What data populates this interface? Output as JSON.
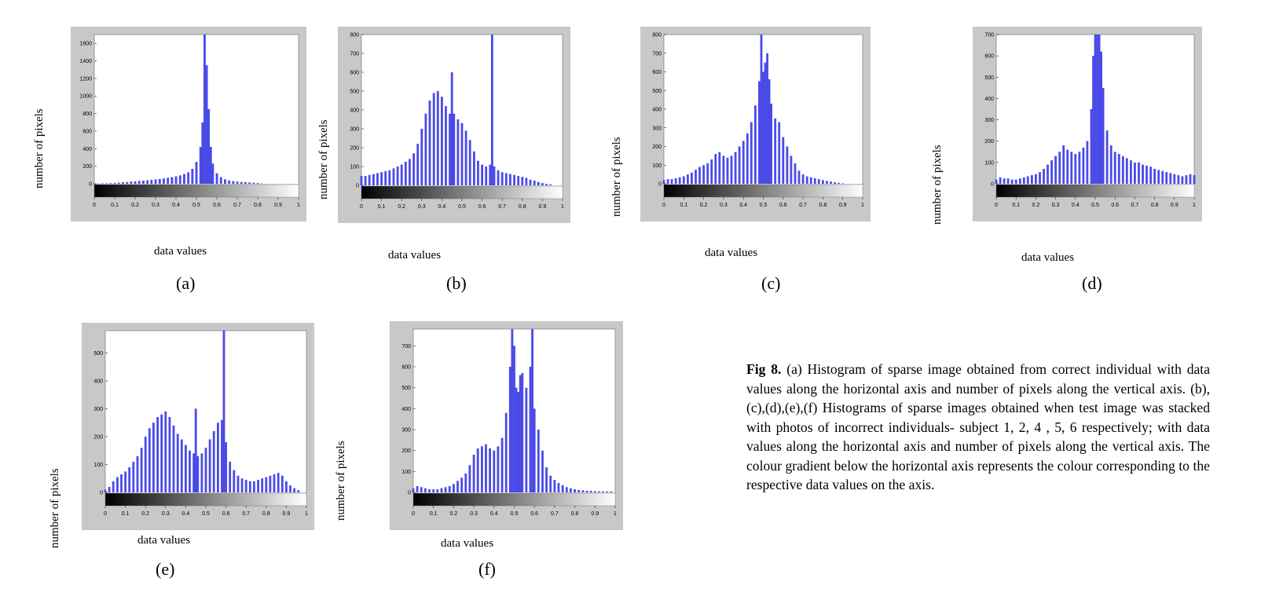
{
  "figure": {
    "caption_label": "Fig 8.",
    "caption_text": "(a) Histogram of sparse image obtained from correct individual with data values along the horizontal axis and number of pixels along the vertical axis. (b),(c),(d),(e),(f) Histograms of sparse images obtained when test image was stacked with photos of incorrect individuals- subject 1, 2, 4 , 5, 6 respectively; with data values along the horizontal axis and number of pixels along the vertical axis. The colour gradient below the horizontal axis represents the colour corresponding to the respective data values on the axis."
  },
  "colors": {
    "bar": "#4a4ae8",
    "frame": "#c8c8c8",
    "plot_bg": "#ffffff"
  },
  "chart_data": [
    {
      "type": "bar",
      "label": "(a)",
      "xlabel": "data values",
      "ylabel": "number of pixels",
      "xlim": [
        0,
        1
      ],
      "ylim": [
        0,
        1700
      ],
      "xticks": [
        "0",
        "0.1",
        "0.2",
        "0.3",
        "0.4",
        "0.5",
        "0.6",
        "0.7",
        "0.8",
        "0.9",
        "1"
      ],
      "yticks": [
        0,
        200,
        400,
        600,
        800,
        1000,
        1200,
        1400,
        1600
      ],
      "x": [
        0.0,
        0.02,
        0.04,
        0.06,
        0.08,
        0.1,
        0.12,
        0.14,
        0.16,
        0.18,
        0.2,
        0.22,
        0.24,
        0.26,
        0.28,
        0.3,
        0.32,
        0.34,
        0.36,
        0.38,
        0.4,
        0.42,
        0.44,
        0.46,
        0.48,
        0.5,
        0.52,
        0.53,
        0.54,
        0.55,
        0.56,
        0.57,
        0.58,
        0.6,
        0.62,
        0.64,
        0.66,
        0.68,
        0.7,
        0.72,
        0.74,
        0.76,
        0.78,
        0.8,
        0.82
      ],
      "y": [
        3,
        4,
        5,
        6,
        8,
        10,
        13,
        17,
        20,
        24,
        28,
        32,
        36,
        40,
        45,
        50,
        55,
        60,
        68,
        75,
        85,
        95,
        110,
        130,
        170,
        250,
        420,
        700,
        1700,
        1350,
        850,
        420,
        230,
        120,
        75,
        50,
        38,
        30,
        25,
        20,
        18,
        15,
        12,
        8,
        4
      ]
    },
    {
      "type": "bar",
      "label": "(b)",
      "xlabel": "data values",
      "ylabel": "number of pixels",
      "xlim": [
        0,
        1
      ],
      "ylim": [
        0,
        800
      ],
      "xticks": [
        "0",
        "0.1",
        "0.2",
        "0.3",
        "0.4",
        "0.5",
        "0.6",
        "0.7",
        "0.8",
        "0.9",
        "1"
      ],
      "yticks": [
        "0",
        "100",
        "200",
        "300",
        "400",
        "500",
        "600",
        "700",
        "800"
      ],
      "x": [
        0.0,
        0.02,
        0.04,
        0.06,
        0.08,
        0.1,
        0.12,
        0.14,
        0.16,
        0.18,
        0.2,
        0.22,
        0.24,
        0.26,
        0.28,
        0.3,
        0.32,
        0.34,
        0.36,
        0.38,
        0.4,
        0.42,
        0.44,
        0.45,
        0.46,
        0.48,
        0.5,
        0.52,
        0.54,
        0.56,
        0.58,
        0.6,
        0.62,
        0.64,
        0.65,
        0.66,
        0.68,
        0.7,
        0.72,
        0.74,
        0.76,
        0.78,
        0.8,
        0.82,
        0.84,
        0.86,
        0.88,
        0.9,
        0.92,
        0.94
      ],
      "y": [
        50,
        50,
        55,
        60,
        65,
        70,
        75,
        80,
        90,
        100,
        110,
        125,
        140,
        170,
        220,
        300,
        380,
        450,
        490,
        500,
        470,
        420,
        380,
        600,
        380,
        350,
        330,
        290,
        240,
        180,
        130,
        110,
        100,
        110,
        800,
        100,
        80,
        70,
        65,
        60,
        55,
        50,
        45,
        40,
        30,
        25,
        18,
        12,
        8,
        5
      ]
    },
    {
      "type": "bar",
      "label": "(c)",
      "xlabel": "data values",
      "ylabel": "number of pixels",
      "xlim": [
        0,
        1
      ],
      "ylim": [
        0,
        800
      ],
      "xticks": [
        "0",
        "0.1",
        "0.2",
        "0.3",
        "0.4",
        "0.5",
        "0.6",
        "0.7",
        "0.8",
        "0.9",
        "1"
      ],
      "yticks": [
        "0",
        "100",
        "200",
        "300",
        "400",
        "500",
        "600",
        "700",
        "800"
      ],
      "x": [
        0.0,
        0.02,
        0.04,
        0.06,
        0.08,
        0.1,
        0.12,
        0.14,
        0.16,
        0.18,
        0.2,
        0.22,
        0.24,
        0.26,
        0.28,
        0.3,
        0.32,
        0.34,
        0.36,
        0.38,
        0.4,
        0.42,
        0.44,
        0.46,
        0.48,
        0.49,
        0.5,
        0.51,
        0.52,
        0.53,
        0.54,
        0.56,
        0.58,
        0.6,
        0.62,
        0.64,
        0.66,
        0.68,
        0.7,
        0.72,
        0.74,
        0.76,
        0.78,
        0.8,
        0.82,
        0.84,
        0.86,
        0.88,
        0.9
      ],
      "y": [
        20,
        25,
        25,
        30,
        35,
        40,
        50,
        60,
        75,
        90,
        100,
        110,
        130,
        160,
        170,
        150,
        140,
        150,
        170,
        200,
        230,
        270,
        330,
        420,
        550,
        800,
        600,
        650,
        700,
        560,
        430,
        350,
        330,
        250,
        200,
        150,
        110,
        70,
        50,
        40,
        35,
        30,
        25,
        20,
        15,
        12,
        8,
        5,
        2
      ]
    },
    {
      "type": "bar",
      "label": "(d)",
      "xlabel": "data values",
      "ylabel": "number of pixels",
      "xlim": [
        0,
        1
      ],
      "ylim": [
        0,
        700
      ],
      "xticks": [
        "0",
        "0.1",
        "0.2",
        "0.3",
        "0.4",
        "0.5",
        "0.6",
        "0.7",
        "0.8",
        "0.9",
        "1"
      ],
      "yticks": [
        "0",
        "100",
        "200",
        "300",
        "400",
        "500",
        "600",
        "700"
      ],
      "x": [
        0.0,
        0.02,
        0.04,
        0.06,
        0.08,
        0.1,
        0.12,
        0.14,
        0.16,
        0.18,
        0.2,
        0.22,
        0.24,
        0.26,
        0.28,
        0.3,
        0.32,
        0.34,
        0.36,
        0.38,
        0.4,
        0.42,
        0.44,
        0.46,
        0.48,
        0.49,
        0.5,
        0.51,
        0.52,
        0.53,
        0.54,
        0.56,
        0.58,
        0.6,
        0.62,
        0.64,
        0.66,
        0.68,
        0.7,
        0.72,
        0.74,
        0.76,
        0.78,
        0.8,
        0.82,
        0.84,
        0.86,
        0.88,
        0.9,
        0.92,
        0.94,
        0.96,
        0.98,
        1.0
      ],
      "y": [
        20,
        30,
        25,
        25,
        20,
        20,
        25,
        30,
        35,
        40,
        45,
        55,
        70,
        90,
        110,
        130,
        150,
        180,
        160,
        150,
        140,
        150,
        170,
        200,
        350,
        600,
        700,
        720,
        700,
        620,
        450,
        250,
        180,
        150,
        140,
        130,
        120,
        110,
        100,
        100,
        90,
        85,
        80,
        70,
        65,
        60,
        55,
        50,
        45,
        40,
        35,
        40,
        45,
        40
      ]
    },
    {
      "type": "bar",
      "label": "(e)",
      "xlabel": "data values",
      "ylabel": "number of pixels",
      "xlim": [
        0,
        1
      ],
      "ylim": [
        0,
        580
      ],
      "xticks": [
        "0",
        "0.1",
        "0.2",
        "0.3",
        "0.4",
        "0.5",
        "0.6",
        "0.7",
        "0.8",
        "0.9",
        "1"
      ],
      "yticks": [
        "0",
        "100",
        "200",
        "300",
        "400",
        "500"
      ],
      "x": [
        0.0,
        0.02,
        0.04,
        0.06,
        0.08,
        0.1,
        0.12,
        0.14,
        0.16,
        0.18,
        0.2,
        0.22,
        0.24,
        0.26,
        0.28,
        0.3,
        0.32,
        0.34,
        0.36,
        0.38,
        0.4,
        0.42,
        0.44,
        0.45,
        0.46,
        0.48,
        0.5,
        0.52,
        0.54,
        0.56,
        0.58,
        0.59,
        0.6,
        0.62,
        0.64,
        0.66,
        0.68,
        0.7,
        0.72,
        0.74,
        0.76,
        0.78,
        0.8,
        0.82,
        0.84,
        0.86,
        0.88,
        0.9,
        0.92,
        0.94,
        0.96
      ],
      "y": [
        10,
        20,
        40,
        55,
        65,
        75,
        90,
        110,
        130,
        160,
        200,
        230,
        250,
        270,
        280,
        290,
        270,
        240,
        210,
        190,
        170,
        150,
        140,
        300,
        130,
        140,
        160,
        190,
        220,
        250,
        260,
        580,
        180,
        110,
        80,
        60,
        50,
        45,
        40,
        40,
        45,
        50,
        55,
        60,
        65,
        70,
        60,
        40,
        25,
        15,
        8
      ]
    },
    {
      "type": "bar",
      "label": "(f)",
      "xlabel": "data values",
      "ylabel": "number of pixels",
      "xlim": [
        0,
        1
      ],
      "ylim": [
        0,
        780
      ],
      "xticks": [
        "0",
        "0.1",
        "0.2",
        "0.3",
        "0.4",
        "0.5",
        "0.6",
        "0.7",
        "0.8",
        "0.9",
        "1"
      ],
      "yticks": [
        "0",
        "100",
        "200",
        "300",
        "400",
        "500",
        "600",
        "700"
      ],
      "x": [
        0.0,
        0.02,
        0.04,
        0.06,
        0.08,
        0.1,
        0.12,
        0.14,
        0.16,
        0.18,
        0.2,
        0.22,
        0.24,
        0.26,
        0.28,
        0.3,
        0.32,
        0.34,
        0.36,
        0.38,
        0.4,
        0.42,
        0.44,
        0.46,
        0.48,
        0.49,
        0.5,
        0.51,
        0.52,
        0.53,
        0.54,
        0.56,
        0.58,
        0.59,
        0.6,
        0.62,
        0.64,
        0.66,
        0.68,
        0.7,
        0.72,
        0.74,
        0.76,
        0.78,
        0.8,
        0.82,
        0.84,
        0.86,
        0.88,
        0.9,
        0.92,
        0.94,
        0.96,
        0.98
      ],
      "y": [
        20,
        30,
        25,
        20,
        15,
        15,
        15,
        20,
        25,
        30,
        40,
        55,
        70,
        90,
        130,
        180,
        210,
        220,
        230,
        210,
        200,
        220,
        260,
        380,
        600,
        780,
        700,
        500,
        480,
        560,
        570,
        500,
        600,
        780,
        400,
        300,
        200,
        120,
        80,
        60,
        45,
        35,
        25,
        20,
        15,
        12,
        10,
        8,
        8,
        6,
        5,
        5,
        5,
        5
      ]
    }
  ]
}
